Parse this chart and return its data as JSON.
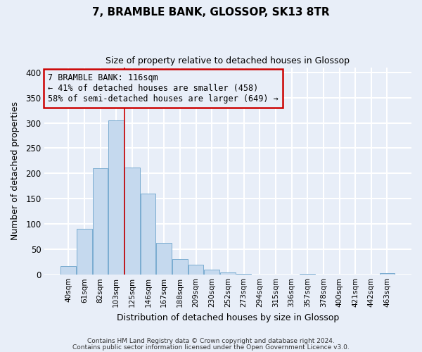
{
  "title": "7, BRAMBLE BANK, GLOSSOP, SK13 8TR",
  "subtitle": "Size of property relative to detached houses in Glossop",
  "xlabel": "Distribution of detached houses by size in Glossop",
  "ylabel": "Number of detached properties",
  "bar_color": "#c5d9ee",
  "bar_edge_color": "#7aacd0",
  "categories": [
    "40sqm",
    "61sqm",
    "82sqm",
    "103sqm",
    "125sqm",
    "146sqm",
    "167sqm",
    "188sqm",
    "209sqm",
    "230sqm",
    "252sqm",
    "273sqm",
    "294sqm",
    "315sqm",
    "336sqm",
    "357sqm",
    "378sqm",
    "400sqm",
    "421sqm",
    "442sqm",
    "463sqm"
  ],
  "values": [
    17,
    90,
    210,
    305,
    212,
    160,
    63,
    30,
    20,
    10,
    4,
    1,
    0,
    0,
    0,
    1,
    0,
    0,
    0,
    0,
    2
  ],
  "ylim": [
    0,
    410
  ],
  "yticks": [
    0,
    50,
    100,
    150,
    200,
    250,
    300,
    350,
    400
  ],
  "annotation_box_text": "7 BRAMBLE BANK: 116sqm\n← 41% of detached houses are smaller (458)\n58% of semi-detached houses are larger (649) →",
  "footer_line1": "Contains HM Land Registry data © Crown copyright and database right 2024.",
  "footer_line2": "Contains public sector information licensed under the Open Government Licence v3.0.",
  "background_color": "#e8eef8",
  "plot_bg_color": "#e8eef8",
  "grid_color": "#ffffff",
  "box_edge_color": "#cc0000",
  "vline_color": "#cc0000",
  "vline_x": 3.5,
  "title_fontsize": 11,
  "subtitle_fontsize": 9
}
